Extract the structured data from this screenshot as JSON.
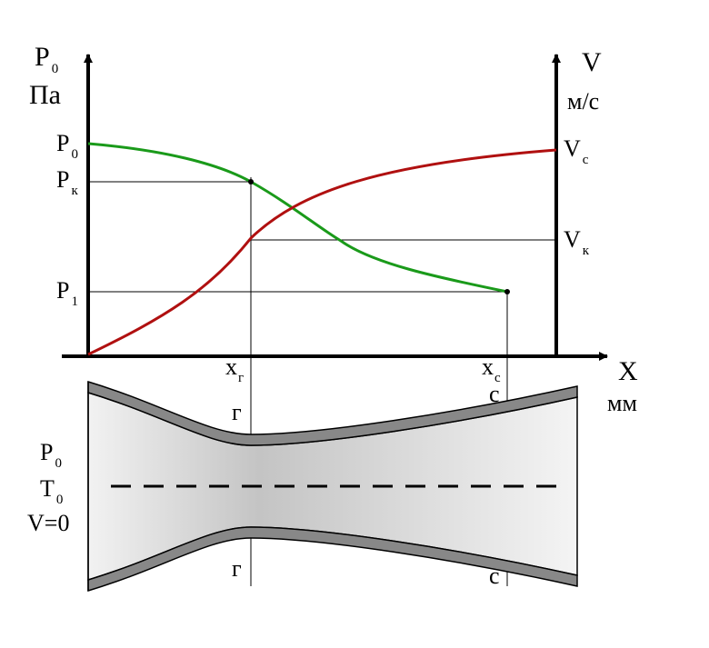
{
  "axes": {
    "left": {
      "symbol": "P",
      "subscript": "0",
      "unit": "Па"
    },
    "right": {
      "symbol": "V",
      "unit": "м/с"
    },
    "x": {
      "symbol": "X",
      "unit": "мм"
    }
  },
  "left_labels": [
    {
      "symbol": "P",
      "subscript": "0"
    },
    {
      "symbol": "P",
      "subscript": "к"
    },
    {
      "symbol": "P",
      "subscript": "1"
    }
  ],
  "right_labels": [
    {
      "symbol": "V",
      "subscript": "с"
    },
    {
      "symbol": "V",
      "subscript": "к"
    }
  ],
  "x_labels": [
    {
      "symbol": "x",
      "subscript": "г"
    },
    {
      "symbol": "x",
      "subscript": "с"
    }
  ],
  "nozzle": {
    "section_labels": [
      "г",
      "с",
      "г",
      "с"
    ],
    "inlet": [
      {
        "symbol": "P",
        "subscript": "0"
      },
      {
        "symbol": "T",
        "subscript": "0"
      },
      {
        "text": "V=0"
      }
    ]
  }
}
